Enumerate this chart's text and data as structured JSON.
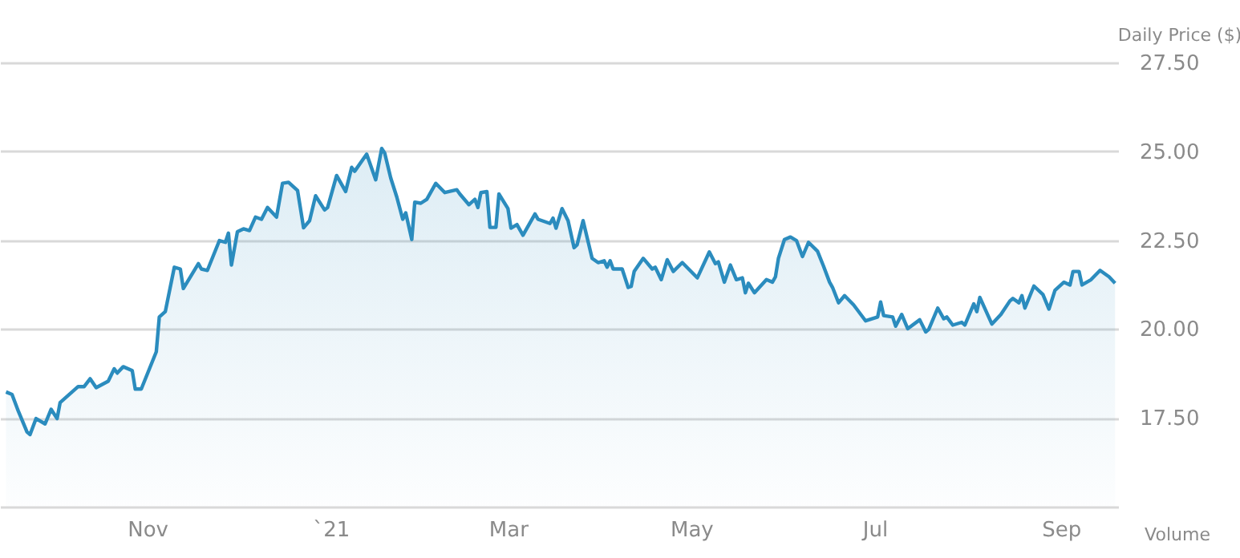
{
  "chart_data": {
    "type": "area",
    "ylabel": "Daily Price ($)",
    "color": "#2b8cbe",
    "grid": "y",
    "annotations": [
      "Volume"
    ],
    "xlim": [
      "2020-09-13",
      "2021-09-20"
    ],
    "xticks": [
      {
        "value": "2020-11-01",
        "label": "Nov"
      },
      {
        "value": "2021-01-01",
        "label": "`21"
      },
      {
        "value": "2021-03-01",
        "label": "Mar"
      },
      {
        "value": "2021-05-01",
        "label": "May"
      },
      {
        "value": "2021-07-01",
        "label": "Jul"
      },
      {
        "value": "2021-09-01",
        "label": "Sep"
      }
    ],
    "ylim": [
      15,
      27.5
    ],
    "yticks": [
      {
        "value": 15,
        "label": null
      },
      {
        "value": 17.5,
        "label": "17.50"
      },
      {
        "value": 20,
        "label": "20.00"
      },
      {
        "value": 22.5,
        "label": "22.50"
      },
      {
        "value": 25,
        "label": "25.00"
      },
      {
        "value": 27.5,
        "label": "27.50"
      }
    ],
    "x": [
      "2020-09-15",
      "2020-09-17",
      "2020-09-19",
      "2020-09-22",
      "2020-09-23",
      "2020-09-25",
      "2020-09-28",
      "2020-09-30",
      "2020-10-02",
      "2020-10-03",
      "2020-10-09",
      "2020-10-11",
      "2020-10-13",
      "2020-10-15",
      "2020-10-19",
      "2020-10-21",
      "2020-10-22",
      "2020-10-24",
      "2020-10-27",
      "2020-10-28",
      "2020-10-30",
      "2020-11-04",
      "2020-11-05",
      "2020-11-07",
      "2020-11-10",
      "2020-11-12",
      "2020-11-13",
      "2020-11-18",
      "2020-11-19",
      "2020-11-21",
      "2020-11-25",
      "2020-11-27",
      "2020-11-28",
      "2020-11-29",
      "2020-12-01",
      "2020-12-03",
      "2020-12-05",
      "2020-12-07",
      "2020-12-09",
      "2020-12-11",
      "2020-12-14",
      "2020-12-16",
      "2020-12-18",
      "2020-12-21",
      "2020-12-23",
      "2020-12-25",
      "2020-12-27",
      "2020-12-30",
      "2020-12-31",
      "2021-01-03",
      "2021-01-06",
      "2021-01-08",
      "2021-01-09",
      "2021-01-13",
      "2021-01-16",
      "2021-01-18",
      "2021-01-19",
      "2021-01-21",
      "2021-01-23",
      "2021-01-25",
      "2021-01-26",
      "2021-01-28",
      "2021-01-29",
      "2021-01-31",
      "2021-02-02",
      "2021-02-05",
      "2021-02-08",
      "2021-02-12",
      "2021-02-13",
      "2021-02-16",
      "2021-02-18",
      "2021-02-19",
      "2021-02-20",
      "2021-02-22",
      "2021-02-23",
      "2021-02-25",
      "2021-02-26",
      "2021-03-01",
      "2021-03-02",
      "2021-03-04",
      "2021-03-06",
      "2021-03-10",
      "2021-03-11",
      "2021-03-15",
      "2021-03-16",
      "2021-03-17",
      "2021-03-19",
      "2021-03-21",
      "2021-03-23",
      "2021-03-24",
      "2021-03-26",
      "2021-03-29",
      "2021-03-31",
      "2021-04-02",
      "2021-04-03",
      "2021-04-04",
      "2021-04-05",
      "2021-04-08",
      "2021-04-10",
      "2021-04-11",
      "2021-04-12",
      "2021-04-15",
      "2021-04-18",
      "2021-04-19",
      "2021-04-21",
      "2021-04-23",
      "2021-04-25",
      "2021-04-28",
      "2021-05-03",
      "2021-05-07",
      "2021-05-09",
      "2021-05-10",
      "2021-05-12",
      "2021-05-14",
      "2021-05-16",
      "2021-05-18",
      "2021-05-19",
      "2021-05-20",
      "2021-05-22",
      "2021-05-26",
      "2021-05-28",
      "2021-05-29",
      "2021-05-30",
      "2021-06-01",
      "2021-06-03",
      "2021-06-05",
      "2021-06-07",
      "2021-06-09",
      "2021-06-12",
      "2021-06-14",
      "2021-06-16",
      "2021-06-17",
      "2021-06-19",
      "2021-06-21",
      "2021-06-24",
      "2021-06-28",
      "2021-07-02",
      "2021-07-03",
      "2021-07-04",
      "2021-07-07",
      "2021-07-08",
      "2021-07-10",
      "2021-07-12",
      "2021-07-16",
      "2021-07-18",
      "2021-07-19",
      "2021-07-22",
      "2021-07-24",
      "2021-07-25",
      "2021-07-27",
      "2021-07-30",
      "2021-07-31",
      "2021-08-03",
      "2021-08-04",
      "2021-08-05",
      "2021-08-09",
      "2021-08-12",
      "2021-08-15",
      "2021-08-16",
      "2021-08-18",
      "2021-08-19",
      "2021-08-20",
      "2021-08-23",
      "2021-08-26",
      "2021-08-28",
      "2021-08-30",
      "2021-09-02",
      "2021-09-04",
      "2021-09-05",
      "2021-09-07",
      "2021-09-08",
      "2021-09-11",
      "2021-09-14",
      "2021-09-17",
      "2021-09-19"
    ],
    "values": [
      18.23,
      18.16,
      17.71,
      17.1,
      17.03,
      17.48,
      17.33,
      17.74,
      17.48,
      17.93,
      18.38,
      18.38,
      18.6,
      18.35,
      18.53,
      18.88,
      18.76,
      18.94,
      18.83,
      18.31,
      18.31,
      19.36,
      20.34,
      20.49,
      21.74,
      21.69,
      21.14,
      21.84,
      21.69,
      21.65,
      22.49,
      22.44,
      22.7,
      21.8,
      22.74,
      22.82,
      22.77,
      23.15,
      23.09,
      23.42,
      23.15,
      24.1,
      24.13,
      23.9,
      22.85,
      23.05,
      23.75,
      23.35,
      23.42,
      24.32,
      23.87,
      24.55,
      24.44,
      24.92,
      24.2,
      25.08,
      24.95,
      24.25,
      23.72,
      23.09,
      23.27,
      22.52,
      23.57,
      23.54,
      23.65,
      24.1,
      23.84,
      23.92,
      23.8,
      23.5,
      23.65,
      23.42,
      23.84,
      23.87,
      22.86,
      22.86,
      23.8,
      23.39,
      22.84,
      22.94,
      22.64,
      23.24,
      23.09,
      22.97,
      23.12,
      22.84,
      23.39,
      23.05,
      22.29,
      22.37,
      23.05,
      21.99,
      21.87,
      21.92,
      21.74,
      21.92,
      21.69,
      21.69,
      21.17,
      21.2,
      21.62,
      21.99,
      21.69,
      21.74,
      21.39,
      21.95,
      21.62,
      21.87,
      21.44,
      22.17,
      21.84,
      21.89,
      21.32,
      21.8,
      21.39,
      21.44,
      21.02,
      21.29,
      21.02,
      21.39,
      21.32,
      21.47,
      21.99,
      22.52,
      22.59,
      22.49,
      22.04,
      22.44,
      22.19,
      21.77,
      21.32,
      21.17,
      20.74,
      20.94,
      20.68,
      20.23,
      20.34,
      20.76,
      20.38,
      20.34,
      20.08,
      20.41,
      20.01,
      20.26,
      19.92,
      19.99,
      20.59,
      20.29,
      20.34,
      20.11,
      20.19,
      20.11,
      20.71,
      20.49,
      20.89,
      20.14,
      20.41,
      20.79,
      20.86,
      20.74,
      20.94,
      20.59,
      21.21,
      20.97,
      20.56,
      21.09,
      21.32,
      21.24,
      21.62,
      21.62,
      21.24,
      21.39,
      21.65,
      21.47,
      21.29
    ]
  }
}
